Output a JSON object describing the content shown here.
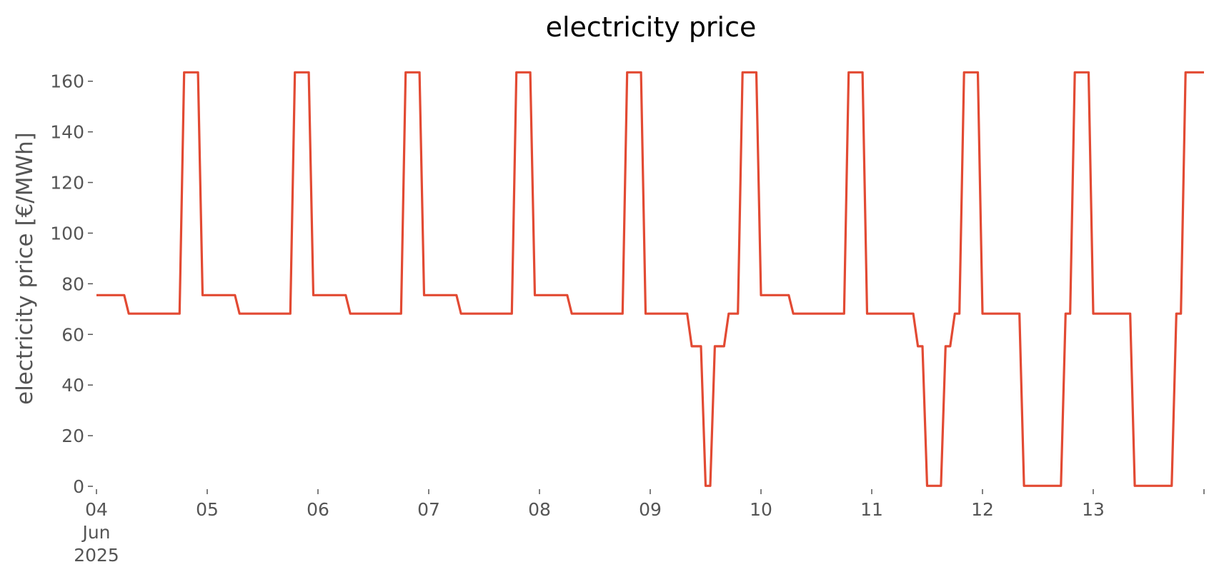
{
  "chart_data": {
    "type": "line",
    "title": "electricity price",
    "xlabel": "",
    "ylabel": "electricity price [€/MWh]",
    "ylim": [
      0,
      165
    ],
    "y_ticks": [
      0,
      20,
      40,
      60,
      80,
      100,
      120,
      140,
      160
    ],
    "x_ticks": [
      {
        "lines": [
          "04",
          "Jun",
          "2025"
        ]
      },
      {
        "lines": [
          "05"
        ]
      },
      {
        "lines": [
          "06"
        ]
      },
      {
        "lines": [
          "07"
        ]
      },
      {
        "lines": [
          "08"
        ]
      },
      {
        "lines": [
          "09"
        ]
      },
      {
        "lines": [
          "10"
        ]
      },
      {
        "lines": [
          "11"
        ]
      },
      {
        "lines": [
          "12"
        ]
      },
      {
        "lines": [
          "13"
        ]
      },
      {
        "lines": []
      }
    ],
    "xlim": [
      "2025-06-04 00:00",
      "2025-06-14 00:00"
    ],
    "grid": false,
    "line_color": "#e24a33",
    "series": [
      {
        "x": [
          "2025-06-04 00:00",
          "2025-06-04 06:00",
          "2025-06-04 07:00",
          "2025-06-04 18:00",
          "2025-06-04 19:00",
          "2025-06-04 22:00",
          "2025-06-04 23:00",
          "2025-06-05 06:00",
          "2025-06-05 07:00",
          "2025-06-05 18:00",
          "2025-06-05 19:00",
          "2025-06-05 22:00",
          "2025-06-05 23:00",
          "2025-06-06 06:00",
          "2025-06-06 07:00",
          "2025-06-06 18:00",
          "2025-06-06 19:00",
          "2025-06-06 22:00",
          "2025-06-06 23:00",
          "2025-06-07 06:00",
          "2025-06-07 07:00",
          "2025-06-07 18:00",
          "2025-06-07 19:00",
          "2025-06-07 22:00",
          "2025-06-07 23:00",
          "2025-06-08 06:00",
          "2025-06-08 07:00",
          "2025-06-08 18:00",
          "2025-06-08 19:00",
          "2025-06-08 22:00",
          "2025-06-08 23:00",
          "2025-06-09 08:00",
          "2025-06-09 09:00",
          "2025-06-09 11:00",
          "2025-06-09 12:00",
          "2025-06-09 13:00",
          "2025-06-09 14:00",
          "2025-06-09 16:00",
          "2025-06-09 17:00",
          "2025-06-09 19:00",
          "2025-06-09 20:00",
          "2025-06-09 23:00",
          "2025-06-10 00:00",
          "2025-06-10 06:00",
          "2025-06-10 07:00",
          "2025-06-10 18:00",
          "2025-06-10 19:00",
          "2025-06-10 22:00",
          "2025-06-10 23:00",
          "2025-06-11 09:00",
          "2025-06-11 10:00",
          "2025-06-11 11:00",
          "2025-06-11 12:00",
          "2025-06-11 15:00",
          "2025-06-11 16:00",
          "2025-06-11 17:00",
          "2025-06-11 18:00",
          "2025-06-11 19:00",
          "2025-06-11 20:00",
          "2025-06-11 23:00",
          "2025-06-12 00:00",
          "2025-06-12 08:00",
          "2025-06-12 09:00",
          "2025-06-12 17:00",
          "2025-06-12 18:00",
          "2025-06-12 19:00",
          "2025-06-12 20:00",
          "2025-06-12 23:00",
          "2025-06-13 00:00",
          "2025-06-13 08:00",
          "2025-06-13 09:00",
          "2025-06-13 17:00",
          "2025-06-13 18:00",
          "2025-06-13 19:00",
          "2025-06-13 20:00",
          "2025-06-14 00:00"
        ],
        "values": [
          75.5,
          75.5,
          68.2,
          68.2,
          163.5,
          163.5,
          75.5,
          75.5,
          68.2,
          68.2,
          163.5,
          163.5,
          75.5,
          75.5,
          68.2,
          68.2,
          163.5,
          163.5,
          75.5,
          75.5,
          68.2,
          68.2,
          163.5,
          163.5,
          75.5,
          75.5,
          68.2,
          68.2,
          163.5,
          163.5,
          68.2,
          68.2,
          55.3,
          55.3,
          0.2,
          0.2,
          55.3,
          55.3,
          68.2,
          68.2,
          163.5,
          163.5,
          75.5,
          75.5,
          68.2,
          68.2,
          163.5,
          163.5,
          68.2,
          68.2,
          55.3,
          55.3,
          0.2,
          0.2,
          55.3,
          55.3,
          68.2,
          68.2,
          163.5,
          163.5,
          68.2,
          68.2,
          0.2,
          0.2,
          68.2,
          68.2,
          163.5,
          163.5,
          68.2,
          68.2,
          0.2,
          0.2,
          68.2,
          68.2,
          163.5,
          163.5
        ]
      }
    ]
  }
}
